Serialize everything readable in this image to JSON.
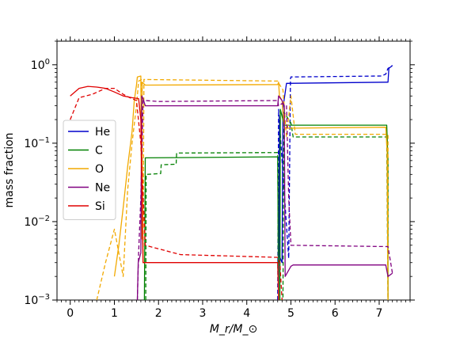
{
  "chart_data": {
    "type": "line",
    "title": "",
    "xlabel": "M_r/M_⊙",
    "ylabel": "mass fraction",
    "xlim": [
      -0.3,
      7.7
    ],
    "ylim": [
      0.001,
      2.0
    ],
    "yscale": "log",
    "grid": false,
    "legend_placement": "center-left",
    "x_ticks": [
      0,
      1,
      2,
      3,
      4,
      5,
      6,
      7
    ],
    "x_tick_labels": [
      "0",
      "1",
      "2",
      "3",
      "4",
      "5",
      "6",
      "7"
    ],
    "y_ticks": [
      0.001,
      0.01,
      0.1,
      1
    ],
    "y_tick_labels": [
      {
        "base": "10",
        "exp": "−3"
      },
      {
        "base": "10",
        "exp": "−2"
      },
      {
        "base": "10",
        "exp": "−1"
      },
      {
        "base": "10",
        "exp": "0"
      }
    ],
    "series": [
      {
        "name": "He",
        "color": "#0000cc",
        "style": "solid",
        "points": [
          [
            4.72,
            0.001
          ],
          [
            4.74,
            0.2
          ],
          [
            4.75,
            0.0035
          ],
          [
            4.8,
            0.003
          ],
          [
            4.82,
            0.28
          ],
          [
            4.9,
            0.58
          ],
          [
            7.17,
            0.6
          ],
          [
            7.2,
            0.6
          ],
          [
            7.22,
            0.9
          ],
          [
            7.3,
            0.98
          ]
        ]
      },
      {
        "name": "He",
        "color": "#0000cc",
        "style": "dashed",
        "points": [
          [
            4.7,
            0.001
          ],
          [
            4.72,
            0.27
          ],
          [
            4.95,
            0.0034
          ],
          [
            4.99,
            0.66
          ],
          [
            5.0,
            0.7
          ],
          [
            7.05,
            0.72
          ],
          [
            7.15,
            0.76
          ],
          [
            7.2,
            0.9
          ],
          [
            7.3,
            0.98
          ]
        ]
      },
      {
        "name": "C",
        "color": "#008000",
        "style": "solid",
        "points": [
          [
            1.68,
            0.001
          ],
          [
            1.7,
            0.065
          ],
          [
            4.7,
            0.067
          ],
          [
            4.72,
            0.001
          ],
          [
            4.75,
            0.001
          ],
          [
            4.76,
            0.27
          ],
          [
            4.85,
            0.17
          ],
          [
            7.15,
            0.17
          ],
          [
            7.17,
            0.17
          ],
          [
            7.2,
            0.06
          ],
          [
            7.2,
            0.001
          ]
        ]
      },
      {
        "name": "C",
        "color": "#008000",
        "style": "dashed",
        "points": [
          [
            1.71,
            0.001
          ],
          [
            1.72,
            0.04
          ],
          [
            2.05,
            0.041
          ],
          [
            2.06,
            0.053
          ],
          [
            2.4,
            0.054
          ],
          [
            2.41,
            0.075
          ],
          [
            4.7,
            0.076
          ],
          [
            4.72,
            0.001
          ],
          [
            4.82,
            0.001
          ],
          [
            4.84,
            0.25
          ],
          [
            5.0,
            0.18
          ],
          [
            5.05,
            0.12
          ],
          [
            7.17,
            0.12
          ],
          [
            7.2,
            0.001
          ]
        ]
      },
      {
        "name": "O",
        "color": "#f2a900",
        "style": "solid",
        "points": [
          [
            1.0,
            0.002
          ],
          [
            1.1,
            0.005
          ],
          [
            1.2,
            0.015
          ],
          [
            1.3,
            0.05
          ],
          [
            1.4,
            0.14
          ],
          [
            1.45,
            0.35
          ],
          [
            1.5,
            0.55
          ],
          [
            1.52,
            0.7
          ],
          [
            1.6,
            0.72
          ],
          [
            1.62,
            0.006
          ],
          [
            1.63,
            0.6
          ],
          [
            1.7,
            0.55
          ],
          [
            4.7,
            0.56
          ],
          [
            4.72,
            0.6
          ],
          [
            4.74,
            0.4
          ],
          [
            4.8,
            0.35
          ],
          [
            4.85,
            0.155
          ],
          [
            7.15,
            0.16
          ],
          [
            7.18,
            0.08
          ],
          [
            7.2,
            0.001
          ]
        ]
      },
      {
        "name": "O",
        "color": "#f2a900",
        "style": "dashed",
        "points": [
          [
            0.6,
            0.001
          ],
          [
            0.8,
            0.003
          ],
          [
            1.0,
            0.008
          ],
          [
            1.2,
            0.002
          ],
          [
            1.3,
            0.025
          ],
          [
            1.4,
            0.1
          ],
          [
            1.5,
            0.3
          ],
          [
            1.55,
            0.62
          ],
          [
            1.62,
            0.65
          ],
          [
            1.65,
            0.003
          ],
          [
            1.67,
            0.65
          ],
          [
            4.7,
            0.62
          ],
          [
            4.75,
            0.55
          ],
          [
            4.82,
            0.48
          ],
          [
            4.9,
            0.12
          ],
          [
            5.0,
            0.4
          ],
          [
            5.1,
            0.13
          ],
          [
            7.2,
            0.13
          ],
          [
            7.2,
            0.001
          ]
        ]
      },
      {
        "name": "Ne",
        "color": "#800080",
        "style": "solid",
        "points": [
          [
            1.52,
            0.001
          ],
          [
            1.54,
            0.003
          ],
          [
            1.6,
            0.004
          ],
          [
            1.62,
            0.4
          ],
          [
            1.65,
            0.37
          ],
          [
            1.7,
            0.3
          ],
          [
            4.7,
            0.3
          ],
          [
            4.72,
            0.4
          ],
          [
            4.8,
            0.35
          ],
          [
            4.85,
            0.3
          ],
          [
            4.87,
            0.002
          ],
          [
            5.0,
            0.0027
          ],
          [
            5.05,
            0.0028
          ],
          [
            7.15,
            0.0028
          ],
          [
            7.2,
            0.002
          ],
          [
            7.3,
            0.0022
          ]
        ]
      },
      {
        "name": "Ne",
        "color": "#800080",
        "style": "dashed",
        "points": [
          [
            1.52,
            0.001
          ],
          [
            1.55,
            0.004
          ],
          [
            1.6,
            0.02
          ],
          [
            1.65,
            0.35
          ],
          [
            1.7,
            0.35
          ],
          [
            2.0,
            0.34
          ],
          [
            4.7,
            0.35
          ],
          [
            4.72,
            0.3
          ],
          [
            4.8,
            0.32
          ],
          [
            4.9,
            0.3
          ],
          [
            4.95,
            0.02
          ],
          [
            5.0,
            0.005
          ],
          [
            7.2,
            0.0048
          ],
          [
            7.3,
            0.0022
          ]
        ]
      },
      {
        "name": "Si",
        "color": "#e00000",
        "style": "solid",
        "points": [
          [
            0.0,
            0.4
          ],
          [
            0.2,
            0.5
          ],
          [
            0.4,
            0.53
          ],
          [
            0.6,
            0.52
          ],
          [
            0.8,
            0.5
          ],
          [
            1.0,
            0.45
          ],
          [
            1.2,
            0.4
          ],
          [
            1.4,
            0.38
          ],
          [
            1.55,
            0.37
          ],
          [
            1.6,
            0.2
          ],
          [
            1.65,
            0.003
          ],
          [
            4.7,
            0.003
          ],
          [
            4.72,
            0.001
          ]
        ]
      },
      {
        "name": "Si",
        "color": "#e00000",
        "style": "dashed",
        "points": [
          [
            0.0,
            0.2
          ],
          [
            0.2,
            0.38
          ],
          [
            0.5,
            0.42
          ],
          [
            0.8,
            0.5
          ],
          [
            1.0,
            0.5
          ],
          [
            1.2,
            0.42
          ],
          [
            1.35,
            0.38
          ],
          [
            1.5,
            0.35
          ],
          [
            1.6,
            0.1
          ],
          [
            1.7,
            0.005
          ],
          [
            2.0,
            0.0045
          ],
          [
            2.5,
            0.0038
          ],
          [
            4.7,
            0.0035
          ],
          [
            4.75,
            0.003
          ],
          [
            4.8,
            0.001
          ]
        ]
      }
    ],
    "legend": [
      {
        "label": "He",
        "color": "#0000cc"
      },
      {
        "label": "C",
        "color": "#008000"
      },
      {
        "label": "O",
        "color": "#f2a900"
      },
      {
        "label": "Ne",
        "color": "#800080"
      },
      {
        "label": "Si",
        "color": "#e00000"
      }
    ]
  }
}
